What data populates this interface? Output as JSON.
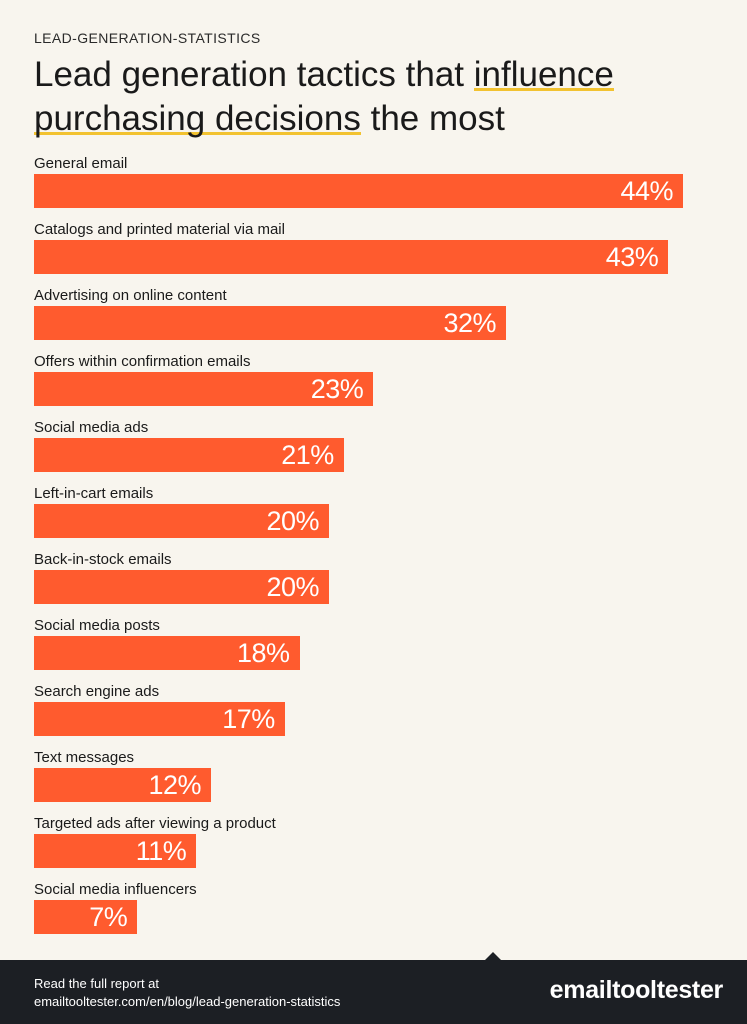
{
  "kicker": "LEAD-GENERATION-STATISTICS",
  "title": {
    "part1": "Lead generation tactics that ",
    "highlight1": "influence",
    "highlight2": "purchasing decisions",
    "part2": " the most"
  },
  "colors": {
    "bar": "#ff5b2e",
    "background": "#f8f5ee",
    "footer": "#1c1f24",
    "highlight": "#f2c230"
  },
  "chart_data": {
    "type": "bar",
    "orientation": "horizontal",
    "title": "Lead generation tactics that influence purchasing decisions the most",
    "xlim": [
      0,
      44
    ],
    "categories": [
      "General email",
      "Catalogs and printed material via mail",
      "Advertising on online content",
      "Offers within confirmation emails",
      "Social media ads",
      "Left-in-cart emails",
      "Back-in-stock emails",
      "Social media posts",
      "Search engine ads",
      "Text messages",
      "Targeted ads after viewing a product",
      "Social media influencers"
    ],
    "values": [
      44,
      43,
      32,
      23,
      21,
      20,
      20,
      18,
      17,
      12,
      11,
      7
    ],
    "value_labels": [
      "44%",
      "43%",
      "32%",
      "23%",
      "21%",
      "20%",
      "20%",
      "18%",
      "17%",
      "12%",
      "11%",
      "7%"
    ]
  },
  "footer": {
    "read_text": "Read the full report at",
    "url": "emailtooltester.com/en/blog/lead-generation-statistics",
    "logo": "emailtooltester"
  }
}
